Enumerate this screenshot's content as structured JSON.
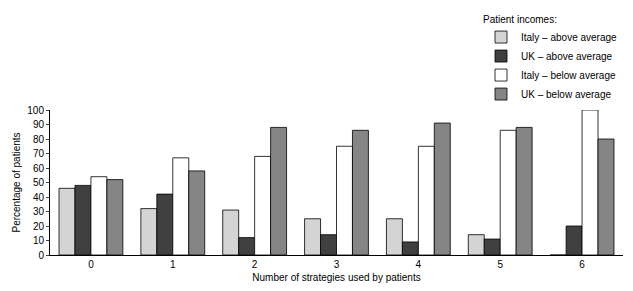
{
  "chart_data": {
    "type": "bar",
    "x_label": "Number of strategies used by patients",
    "y_label": "Percentage of patients",
    "legend_title": "Patient incomes:",
    "legend": "top right",
    "grid": false,
    "categories": [
      "0",
      "1",
      "2",
      "3",
      "4",
      "5",
      "6"
    ],
    "series": [
      {
        "name": "Italy – above average",
        "color": "#d4d4d4",
        "values": [
          46,
          32,
          31,
          25,
          25,
          14,
          0
        ]
      },
      {
        "name": "UK – above average",
        "color": "#404040",
        "values": [
          48,
          42,
          12,
          14,
          9,
          11,
          20
        ]
      },
      {
        "name": "Italy – below average",
        "color": "#ffffff",
        "values": [
          54,
          67,
          68,
          75,
          75,
          86,
          100
        ]
      },
      {
        "name": "UK – below average",
        "color": "#858585",
        "values": [
          52,
          58,
          88,
          86,
          91,
          88,
          80
        ]
      }
    ],
    "ylim": [
      0,
      100
    ],
    "yticks": [
      0,
      10,
      20,
      30,
      40,
      50,
      60,
      70,
      80,
      90,
      100
    ]
  }
}
